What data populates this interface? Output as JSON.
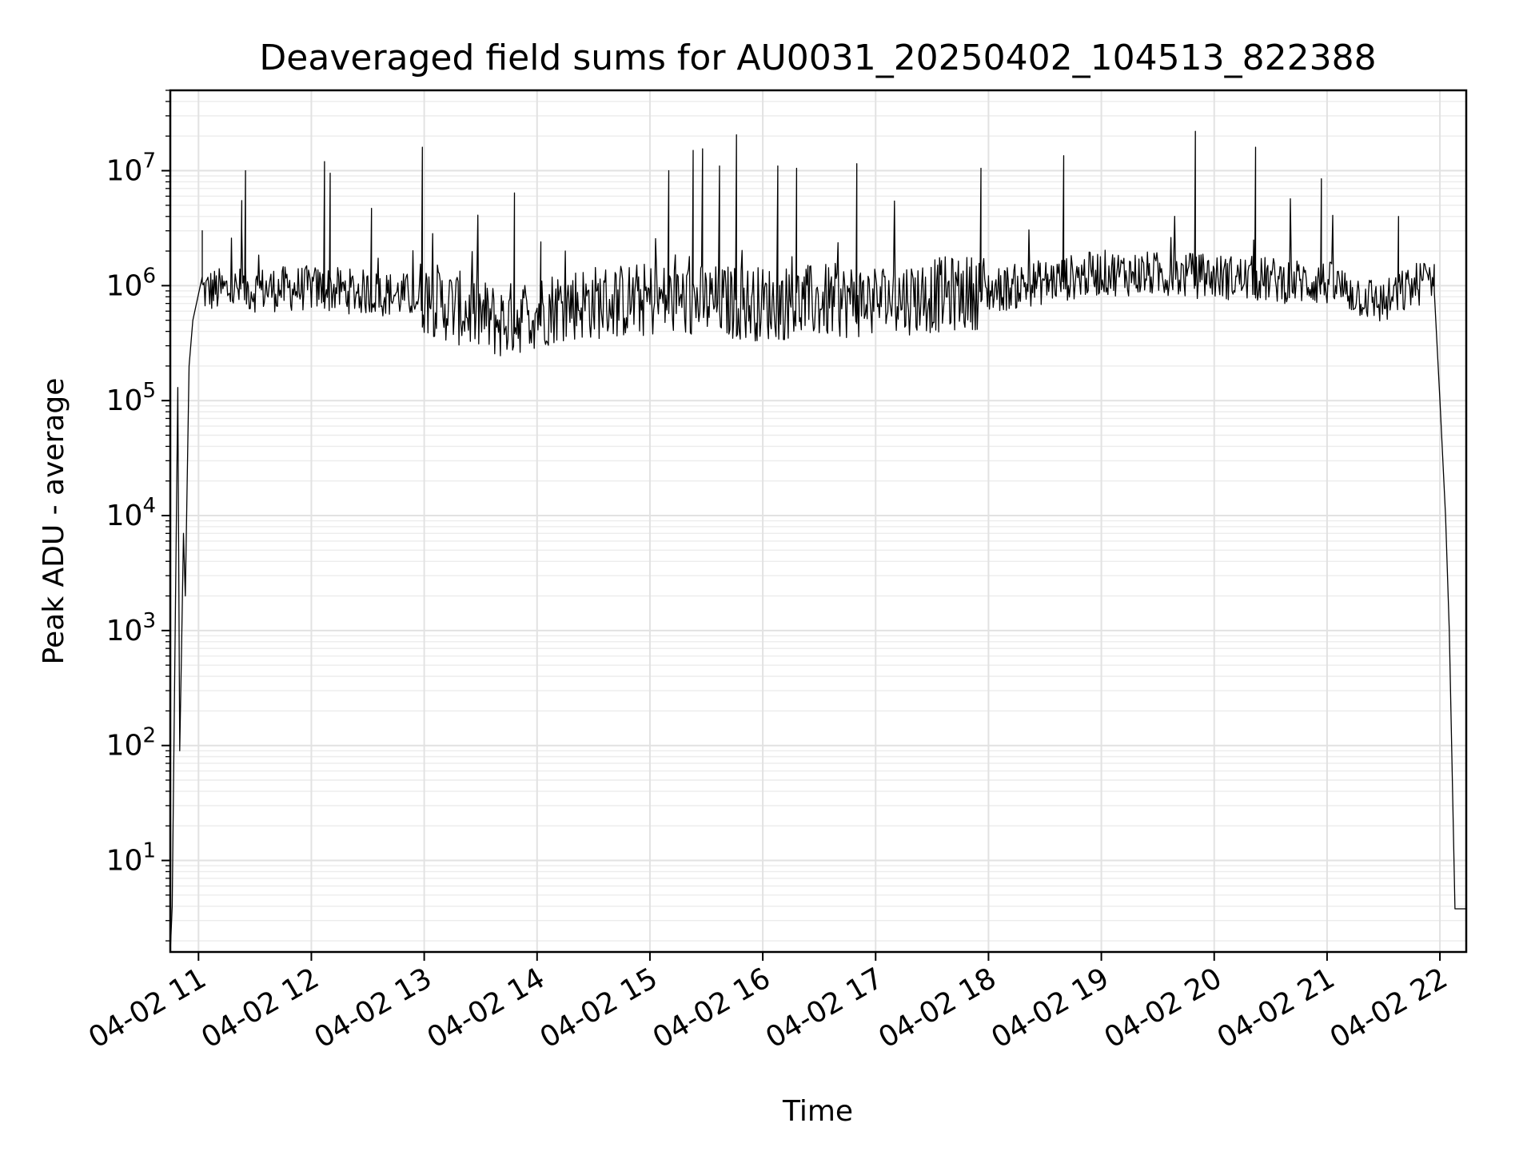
{
  "chart_data": {
    "type": "line",
    "title": "Deaveraged field sums for AU0031_20250402_104513_822388",
    "xlabel": "Time",
    "ylabel": "Peak ADU - average",
    "yscale": "log",
    "ylim": [
      1.6,
      50000000
    ],
    "xlim": [
      "2025-04-02 10:45",
      "2025-04-02 22:14"
    ],
    "grid": true,
    "x_ticks": [
      {
        "label": "04-02 11",
        "value": "2025-04-02 11:00"
      },
      {
        "label": "04-02 12",
        "value": "2025-04-02 12:00"
      },
      {
        "label": "04-02 13",
        "value": "2025-04-02 13:00"
      },
      {
        "label": "04-02 14",
        "value": "2025-04-02 14:00"
      },
      {
        "label": "04-02 15",
        "value": "2025-04-02 15:00"
      },
      {
        "label": "04-02 16",
        "value": "2025-04-02 16:00"
      },
      {
        "label": "04-02 17",
        "value": "2025-04-02 17:00"
      },
      {
        "label": "04-02 18",
        "value": "2025-04-02 18:00"
      },
      {
        "label": "04-02 19",
        "value": "2025-04-02 19:00"
      },
      {
        "label": "04-02 20",
        "value": "2025-04-02 20:00"
      },
      {
        "label": "04-02 21",
        "value": "2025-04-02 21:00"
      },
      {
        "label": "04-02 22",
        "value": "2025-04-02 22:00"
      }
    ],
    "y_ticks": [
      {
        "base": "10",
        "exp": "1",
        "value": 10
      },
      {
        "base": "10",
        "exp": "2",
        "value": 100
      },
      {
        "base": "10",
        "exp": "3",
        "value": 1000
      },
      {
        "base": "10",
        "exp": "4",
        "value": 10000
      },
      {
        "base": "10",
        "exp": "5",
        "value": 100000
      },
      {
        "base": "10",
        "exp": "6",
        "value": 1000000
      },
      {
        "base": "10",
        "exp": "7",
        "value": 10000000
      }
    ],
    "series": [
      {
        "color": "#000000",
        "baseline_points": [
          {
            "x": "2025-04-02 11:00",
            "y": 900000
          },
          {
            "x": "2025-04-02 12:00",
            "y": 950000
          },
          {
            "x": "2025-04-02 13:00",
            "y": 800000
          },
          {
            "x": "2025-04-02 13:40",
            "y": 480000
          },
          {
            "x": "2025-04-02 14:15",
            "y": 700000
          },
          {
            "x": "2025-04-02 15:00",
            "y": 750000
          },
          {
            "x": "2025-04-02 16:00",
            "y": 700000
          },
          {
            "x": "2025-04-02 17:00",
            "y": 750000
          },
          {
            "x": "2025-04-02 18:00",
            "y": 900000
          },
          {
            "x": "2025-04-02 19:00",
            "y": 1300000
          },
          {
            "x": "2025-04-02 20:00",
            "y": 1200000
          },
          {
            "x": "2025-04-02 21:00",
            "y": 1050000
          },
          {
            "x": "2025-04-02 21:30",
            "y": 700000
          },
          {
            "x": "2025-04-02 21:55",
            "y": 1200000
          }
        ],
        "ramp_up": [
          {
            "x": "2025-04-02 10:45",
            "y": 1.6
          },
          {
            "x": "2025-04-02 10:46",
            "y": 4
          },
          {
            "x": "2025-04-02 10:49",
            "y": 130000
          },
          {
            "x": "2025-04-02 10:50",
            "y": 90
          },
          {
            "x": "2025-04-02 10:51",
            "y": 700
          },
          {
            "x": "2025-04-02 10:52",
            "y": 7000
          },
          {
            "x": "2025-04-02 10:53",
            "y": 2000
          },
          {
            "x": "2025-04-02 10:55",
            "y": 200000
          },
          {
            "x": "2025-04-02 10:57",
            "y": 500000
          },
          {
            "x": "2025-04-02 11:02",
            "y": 1200000
          }
        ],
        "ramp_down": [
          {
            "x": "2025-04-02 21:57",
            "y": 900000
          },
          {
            "x": "2025-04-02 22:00",
            "y": 100000
          },
          {
            "x": "2025-04-02 22:03",
            "y": 10000
          },
          {
            "x": "2025-04-02 22:05",
            "y": 1000
          },
          {
            "x": "2025-04-02 22:08",
            "y": 3.8
          },
          {
            "x": "2025-04-02 22:14",
            "y": 3.8
          }
        ],
        "spikes": [
          {
            "x": "2025-04-02 11:02",
            "y": 3000000
          },
          {
            "x": "2025-04-02 11:23",
            "y": 5500000
          },
          {
            "x": "2025-04-02 11:25",
            "y": 10000000
          },
          {
            "x": "2025-04-02 12:07",
            "y": 12000000
          },
          {
            "x": "2025-04-02 12:10",
            "y": 9500000
          },
          {
            "x": "2025-04-02 12:32",
            "y": 4700000
          },
          {
            "x": "2025-04-02 12:59",
            "y": 16000000
          },
          {
            "x": "2025-04-02 13:48",
            "y": 6400000
          },
          {
            "x": "2025-04-02 14:02",
            "y": 2400000
          },
          {
            "x": "2025-04-02 15:10",
            "y": 10000000
          },
          {
            "x": "2025-04-02 15:23",
            "y": 15000000
          },
          {
            "x": "2025-04-02 15:28",
            "y": 15500000
          },
          {
            "x": "2025-04-02 15:37",
            "y": 11000000
          },
          {
            "x": "2025-04-02 15:46",
            "y": 20500000
          },
          {
            "x": "2025-04-02 16:08",
            "y": 11000000
          },
          {
            "x": "2025-04-02 16:18",
            "y": 10500000
          },
          {
            "x": "2025-04-02 16:50",
            "y": 11500000
          },
          {
            "x": "2025-04-02 17:56",
            "y": 10500000
          },
          {
            "x": "2025-04-02 18:40",
            "y": 13500000
          },
          {
            "x": "2025-04-02 19:50",
            "y": 22000000
          },
          {
            "x": "2025-04-02 20:22",
            "y": 16000000
          },
          {
            "x": "2025-04-02 20:57",
            "y": 8500000
          },
          {
            "x": "2025-04-02 21:38",
            "y": 4000000
          }
        ]
      }
    ]
  }
}
